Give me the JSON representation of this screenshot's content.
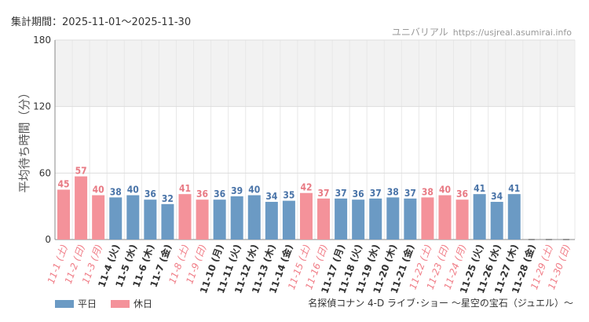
{
  "header": {
    "period": "集計期間：2025-11-01～2025-11-30",
    "site_name": "ユニバリアル",
    "site_url": "https://usjreal.asumirai.info"
  },
  "footer": {
    "attraction": "名探偵コナン 4-D ライブ･ショー ～星空の宝石（ジュエル）～"
  },
  "legend": [
    {
      "label": "平日",
      "color": "#6b9ac4"
    },
    {
      "label": "休日",
      "color": "#f4929a"
    }
  ],
  "colors": {
    "weekday": "#6b9ac4",
    "holiday": "#f4929a",
    "weekday_label": "#4a74a8",
    "holiday_label": "#e87a84",
    "weekday_tick": "#333333",
    "holiday_tick": "#f07c86",
    "band": "#f2f2f2",
    "grid": "#e8e8e8"
  },
  "chart_data": {
    "type": "bar",
    "title": "",
    "ylabel": "平均待ち時間（分）",
    "xlabel": "",
    "ylim": [
      0,
      180
    ],
    "yticks": [
      0,
      60,
      120,
      180
    ],
    "shaded_band": [
      120,
      180
    ],
    "categories": [
      "11-1 (土)",
      "11-2 (日)",
      "11-3 (月)",
      "11-4 (火)",
      "11-5 (水)",
      "11-6 (木)",
      "11-7 (金)",
      "11-8 (土)",
      "11-9 (日)",
      "11-10 (月)",
      "11-11 (火)",
      "11-12 (水)",
      "11-13 (木)",
      "11-14 (金)",
      "11-15 (土)",
      "11-16 (日)",
      "11-17 (月)",
      "11-18 (火)",
      "11-19 (水)",
      "11-20 (木)",
      "11-21 (金)",
      "11-22 (土)",
      "11-23 (日)",
      "11-24 (月)",
      "11-25 (火)",
      "11-26 (水)",
      "11-27 (木)",
      "11-28 (金)",
      "11-29 (土)",
      "11-30 (日)"
    ],
    "values": [
      45,
      57,
      40,
      38,
      40,
      36,
      32,
      41,
      36,
      36,
      39,
      40,
      34,
      35,
      42,
      37,
      37,
      36,
      37,
      38,
      37,
      38,
      40,
      36,
      41,
      34,
      41,
      null,
      null,
      null
    ],
    "holiday": [
      true,
      true,
      true,
      false,
      false,
      false,
      false,
      true,
      true,
      false,
      false,
      false,
      false,
      false,
      true,
      true,
      false,
      false,
      false,
      false,
      false,
      true,
      true,
      true,
      false,
      false,
      false,
      false,
      true,
      true
    ],
    "series": [
      {
        "name": "平日"
      },
      {
        "name": "休日"
      }
    ]
  }
}
